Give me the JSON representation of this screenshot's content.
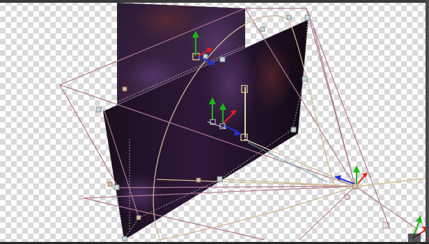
{
  "viewport": {
    "background": "transparency-checkerboard",
    "checker_light": "#ffffff",
    "checker_dark": "#d9d9d9"
  },
  "layers": [
    {
      "name": "back-layer-plane",
      "fill": "#2a1830",
      "selected": true
    },
    {
      "name": "front-layer-plane",
      "fill": "#1c1020",
      "selected": true
    }
  ],
  "camera": {
    "frustum_color": "#b07a90",
    "arc_color": "#cdb894"
  },
  "gizmo": {
    "x_axis_color": "#e02020",
    "y_axis_color": "#18b818",
    "z_axis_color": "#2030d8"
  },
  "icons": [
    "move-gizmo-icon",
    "camera-icon",
    "anchor-point-icon"
  ]
}
